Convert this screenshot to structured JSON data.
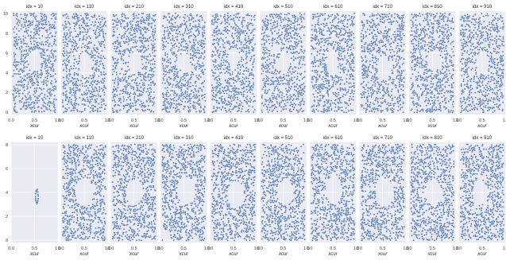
{
  "chart_data": [
    {
      "type": "scatter",
      "row": "top",
      "xlabel": "xcur",
      "xlim": [
        0.0,
        1.0
      ],
      "ylim": [
        0.0,
        1.0
      ],
      "xticks": [
        "0.0",
        "0.5",
        "1.0"
      ],
      "yticks": [
        "0",
        "2",
        "4",
        "6",
        "8",
        "10"
      ],
      "marker_color": "#4c72b0",
      "background": "#eaeaf2",
      "grid": true,
      "panels": [
        {
          "title": "idx = 10",
          "points": 760,
          "hole": {
            "cx": 0.5,
            "cy": 0.52,
            "rx": 0.14,
            "ry": 0.1
          }
        },
        {
          "title": "idx = 110",
          "points": 720,
          "hole": {
            "cx": 0.53,
            "cy": 0.48,
            "rx": 0.14,
            "ry": 0.12
          }
        },
        {
          "title": "idx = 210",
          "points": 740,
          "hole": {
            "cx": 0.52,
            "cy": 0.5,
            "rx": 0.14,
            "ry": 0.11
          }
        },
        {
          "title": "idx = 310",
          "points": 740,
          "hole": {
            "cx": 0.52,
            "cy": 0.5,
            "rx": 0.12,
            "ry": 0.1
          }
        },
        {
          "title": "idx = 410",
          "points": 740,
          "hole": {
            "cx": 0.5,
            "cy": 0.55,
            "rx": 0.12,
            "ry": 0.1
          }
        },
        {
          "title": "idx = 510",
          "points": 720,
          "hole": {
            "cx": 0.52,
            "cy": 0.5,
            "rx": 0.12,
            "ry": 0.11
          }
        },
        {
          "title": "idx = 610",
          "points": 740,
          "hole": {
            "cx": 0.48,
            "cy": 0.5,
            "rx": 0.12,
            "ry": 0.13
          }
        },
        {
          "title": "idx = 710",
          "points": 720,
          "hole": {
            "cx": 0.52,
            "cy": 0.45,
            "rx": 0.14,
            "ry": 0.12
          }
        },
        {
          "title": "idx = 810",
          "points": 740,
          "hole": {
            "cx": 0.52,
            "cy": 0.52,
            "rx": 0.14,
            "ry": 0.1
          }
        },
        {
          "title": "idx = 910",
          "points": 740,
          "hole": {
            "cx": 0.5,
            "cy": 0.5,
            "rx": 0.13,
            "ry": 0.11
          }
        }
      ]
    },
    {
      "type": "scatter",
      "row": "bottom",
      "xlabel": "xcur",
      "xlim": [
        0.0,
        1.0
      ],
      "ylim": [
        0.0,
        1.0
      ],
      "xticks": [
        "0.0",
        "0.5",
        "1.0"
      ],
      "yticks": [
        "0",
        "2",
        "4",
        "6",
        "8"
      ],
      "marker_color": "#4c72b0",
      "background": "#eaeaf2",
      "grid": true,
      "panels": [
        {
          "title": "idx = 10",
          "points": 0,
          "ring": {
            "cx": 0.55,
            "cy": 0.46,
            "rx": 0.06,
            "ry": 0.07,
            "n": 18
          }
        },
        {
          "title": "idx = 110",
          "points": 760,
          "hole": {
            "cx": 0.5,
            "cy": 0.5,
            "rx": 0.2,
            "ry": 0.14
          }
        },
        {
          "title": "idx = 210",
          "points": 760,
          "hole": {
            "cx": 0.5,
            "cy": 0.5,
            "rx": 0.18,
            "ry": 0.13
          }
        },
        {
          "title": "idx = 310",
          "points": 760,
          "hole": {
            "cx": 0.55,
            "cy": 0.52,
            "rx": 0.2,
            "ry": 0.14
          }
        },
        {
          "title": "idx = 410",
          "points": 760,
          "hole": {
            "cx": 0.55,
            "cy": 0.48,
            "rx": 0.18,
            "ry": 0.14
          }
        },
        {
          "title": "idx = 510",
          "points": 760,
          "hole": {
            "cx": 0.55,
            "cy": 0.5,
            "rx": 0.18,
            "ry": 0.13
          }
        },
        {
          "title": "idx = 610",
          "points": 760,
          "hole": {
            "cx": 0.52,
            "cy": 0.52,
            "rx": 0.18,
            "ry": 0.14
          }
        },
        {
          "title": "idx = 710",
          "points": 760,
          "hole": {
            "cx": 0.55,
            "cy": 0.5,
            "rx": 0.2,
            "ry": 0.14
          }
        },
        {
          "title": "idx = 810",
          "points": 760,
          "hole": {
            "cx": 0.52,
            "cy": 0.5,
            "rx": 0.18,
            "ry": 0.13
          }
        },
        {
          "title": "idx = 910",
          "points": 760,
          "hole": {
            "cx": 0.45,
            "cy": 0.5,
            "rx": 0.16,
            "ry": 0.13
          }
        }
      ]
    }
  ]
}
